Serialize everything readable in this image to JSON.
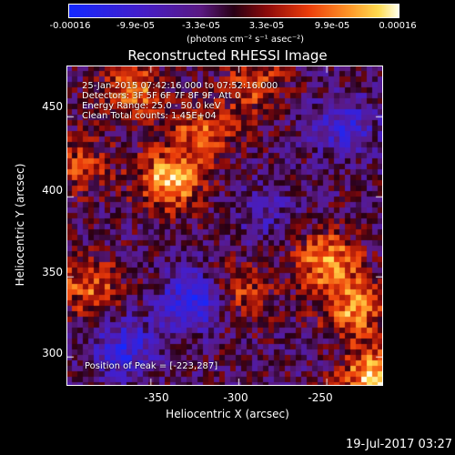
{
  "colorbar": {
    "ticks": [
      "-0.00016",
      "-9.9e-05",
      "-3.3e-05",
      "3.3e-05",
      "9.9e-05",
      "0.00016"
    ],
    "unit": "(photons cm⁻² s⁻¹ asec⁻²)",
    "range": [
      -0.00016,
      0.00016
    ]
  },
  "chart_data": {
    "type": "heatmap",
    "title": "Reconstructed RHESSI Image",
    "xlabel": "Heliocentric X (arcsec)",
    "ylabel": "Heliocentric Y (arcsec)",
    "xlim": [
      -398,
      -218
    ],
    "ylim": [
      282,
      482
    ],
    "xticks": [
      "-350",
      "-300",
      "-250"
    ],
    "xtick_values": [
      -350,
      -300,
      -250
    ],
    "yticks": [
      "300",
      "350",
      "400",
      "450"
    ],
    "ytick_values": [
      300,
      350,
      400,
      450
    ],
    "annotations": [
      "25-Jan-2015 07:42:16.000 to 07:52:16.000",
      "Detectors: 3F 5F 6F 7F 8F 9F, Att 0",
      "Energy Range: 25.0 - 50.0 keV",
      "Clean     Total counts: 1.45E+04"
    ],
    "peak_label": "Position of Peak = [-223,287]",
    "peak": [
      -223,
      287
    ],
    "bright_regions": [
      {
        "x": -360,
        "y": 465,
        "level": 0.7
      },
      {
        "x": -340,
        "y": 410,
        "level": 0.9
      },
      {
        "x": -320,
        "y": 440,
        "level": 0.6
      },
      {
        "x": -290,
        "y": 470,
        "level": 0.5
      },
      {
        "x": -250,
        "y": 360,
        "level": 0.8
      },
      {
        "x": -235,
        "y": 330,
        "level": 0.75
      },
      {
        "x": -223,
        "y": 287,
        "level": 1.0
      },
      {
        "x": -385,
        "y": 345,
        "level": 0.6
      },
      {
        "x": -300,
        "y": 340,
        "level": 0.5
      },
      {
        "x": -390,
        "y": 420,
        "level": 0.45
      }
    ],
    "dark_regions": [
      {
        "x": -325,
        "y": 335,
        "level": -0.8
      },
      {
        "x": -365,
        "y": 305,
        "level": -0.6
      },
      {
        "x": -240,
        "y": 445,
        "level": -0.5
      },
      {
        "x": -285,
        "y": 390,
        "level": -0.3
      }
    ]
  },
  "timestamp": "19-Jul-2017 03:27"
}
